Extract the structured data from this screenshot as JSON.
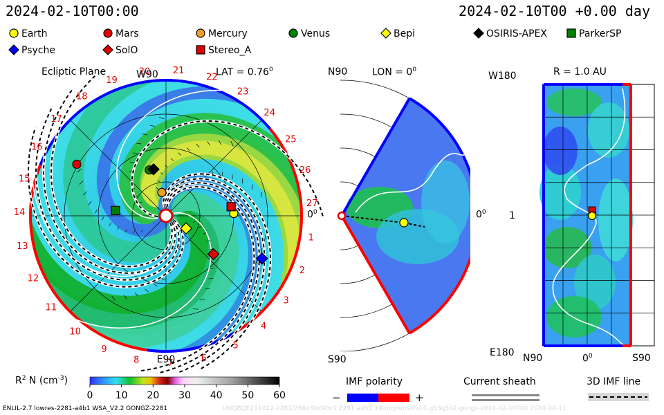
{
  "header": {
    "datetime_left": "2024-02-10T00:00",
    "datetime_right": "2024-02-10T00 +0.00 day"
  },
  "legend": [
    {
      "label": "Earth",
      "marker": "circle",
      "color": "#ffff00"
    },
    {
      "label": "Mars",
      "marker": "circle",
      "color": "#e00000"
    },
    {
      "label": "Mercury",
      "marker": "circle",
      "color": "#f0a020"
    },
    {
      "label": "Venus",
      "marker": "circle",
      "color": "#008000"
    },
    {
      "label": "Bepi",
      "marker": "diamond",
      "color": "#ffff00"
    },
    {
      "label": "OSIRIS-APEX",
      "marker": "diamond",
      "color": "#000000"
    },
    {
      "label": "ParkerSP",
      "marker": "square",
      "color": "#008000"
    },
    {
      "label": "Psyche",
      "marker": "diamond",
      "color": "#0000ff"
    },
    {
      "label": "SolO",
      "marker": "diamond",
      "color": "#e00000"
    },
    {
      "label": "Stereo_A",
      "marker": "square",
      "color": "#e00000"
    }
  ],
  "panels": {
    "ecliptic": {
      "title": "Ecliptic Plane",
      "lat_label": "LAT = 0.76",
      "lat_deg": "0",
      "top_label": "W90",
      "bottom_label": "E90",
      "right_label": "0",
      "right_deg": "0",
      "carrington_numbers": [
        "1",
        "2",
        "3",
        "4",
        "5",
        "6",
        "7",
        "8",
        "9",
        "10",
        "11",
        "12",
        "13",
        "14",
        "15",
        "16",
        "17",
        "18",
        "19",
        "20",
        "21",
        "22",
        "23",
        "24",
        "25",
        "26",
        "27"
      ]
    },
    "meridional": {
      "title": "LON = 0",
      "title_deg": "0",
      "top_label": "N90",
      "bottom_label": "S90",
      "right_label": "0",
      "right_deg": "0"
    },
    "lonlat": {
      "title": "R = 1.0 AU",
      "top_left": "W180",
      "bottom_left": "E180",
      "mid_left": "1",
      "x_left": "N90",
      "x_mid": "0",
      "x_mid_deg": "0",
      "x_right": "S90"
    }
  },
  "colorbar": {
    "label": "R",
    "label_sup": "2",
    "label_rest": " N (cm",
    "label_exp": "-3",
    "label_close": ")",
    "ticks": [
      "0",
      "10",
      "20",
      "30",
      "40",
      "50",
      "60"
    ],
    "min": 0,
    "max": 60
  },
  "imf": {
    "title": "IMF polarity",
    "minus": "−",
    "plus": "+",
    "neg_color": "#0000ff",
    "pos_color": "#ff0000"
  },
  "sheath": {
    "title": "Current sheath"
  },
  "imfline": {
    "title": "3D IMF line"
  },
  "footer": {
    "left": "ENLIL-2.7 lowres-2281-a4b1 WSA_V2.2 GONGZ-2281",
    "faint": "UNQBQE211022-2281/256x30x90x1.2281-a4b1.10-nopturnorld-1.g53q5d2.gongz-2024-02-10T00    2024-02-11"
  },
  "chart_data": [
    {
      "type": "heatmap",
      "view": "ecliptic-plane polar",
      "quantity": "R^2 N (cm^-3)",
      "bodies": [
        {
          "name": "Earth",
          "lon_deg": 2,
          "r_au": 1.0
        },
        {
          "name": "Mars",
          "lon_deg": 150,
          "r_au": 1.52
        },
        {
          "name": "Mercury",
          "lon_deg": 100,
          "r_au": 0.35
        },
        {
          "name": "Venus",
          "lon_deg": 110,
          "r_au": 0.72
        },
        {
          "name": "Bepi",
          "lon_deg": -32,
          "r_au": 0.35
        },
        {
          "name": "OSIRIS-APEX",
          "lon_deg": 105,
          "r_au": 0.71
        },
        {
          "name": "ParkerSP",
          "lon_deg": 174,
          "r_au": 0.75
        },
        {
          "name": "Psyche",
          "lon_deg": -24,
          "r_au": 1.55
        },
        {
          "name": "SolO",
          "lon_deg": -39,
          "r_au": 0.9
        },
        {
          "name": "Stereo_A",
          "lon_deg": 8,
          "r_au": 0.97
        }
      ]
    },
    {
      "type": "heatmap",
      "view": "meridional plane, LON = 0",
      "quantity": "R^2 N (cm^-3)",
      "bodies": [
        {
          "name": "Earth",
          "lat_deg": 0,
          "r_au": 1.0
        }
      ]
    },
    {
      "type": "heatmap",
      "view": "latitude-longitude at R = 1.0 AU",
      "quantity": "R^2 N (cm^-3)",
      "bodies": [
        {
          "name": "Earth",
          "lat_deg": 0,
          "lon_deg": 0
        },
        {
          "name": "Stereo_A",
          "lat_deg": 0,
          "lon_deg": 4
        }
      ]
    }
  ]
}
